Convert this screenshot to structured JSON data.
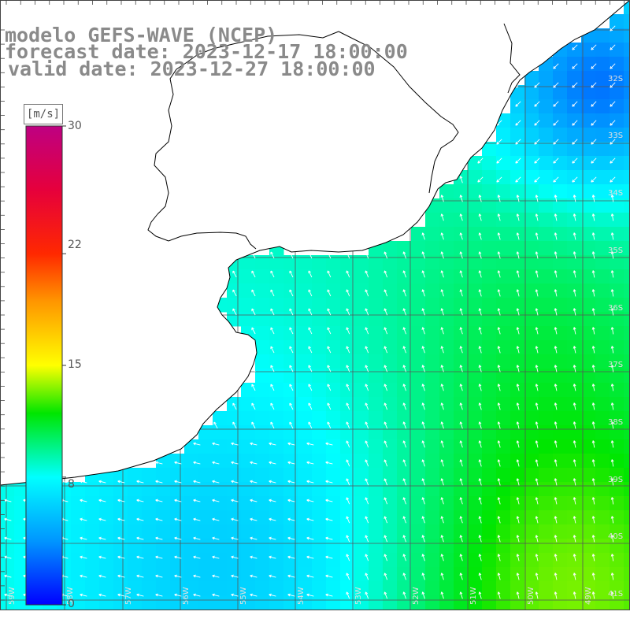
{
  "title": {
    "model": "modelo GEFS-WAVE (NCEP)",
    "forecast": "forecast date: 2023-12-17 18:00:00",
    "valid": "valid date: 2023-12-27 18:00:00"
  },
  "colorbar": {
    "unit": "[m/s]",
    "min": 0,
    "max": 30,
    "ticks": [
      "30",
      "22",
      "15",
      "8",
      "0"
    ],
    "tick_values": [
      30,
      22,
      15,
      8,
      0
    ]
  },
  "lat_labels": [
    "32S",
    "33S",
    "34S",
    "35S",
    "36S",
    "37S",
    "38S",
    "39S",
    "40S",
    "41S"
  ],
  "lon_labels": [
    "59W",
    "58W",
    "57W",
    "56W",
    "55W",
    "54W",
    "53W",
    "52W",
    "51W",
    "50W",
    "49W"
  ],
  "colors": {
    "land": "#ffffff",
    "coast": "#000000",
    "grid": "#555555",
    "arrow": "#ffffff",
    "label": "#8a8a8a"
  }
}
